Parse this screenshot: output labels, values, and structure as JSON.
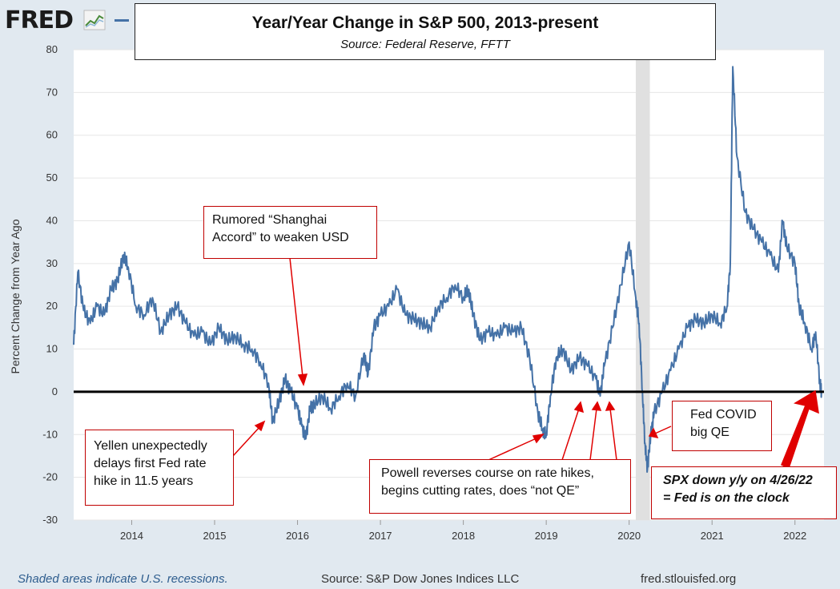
{
  "header": {
    "logo_text": "FRED",
    "logo_icon": "line-graph-icon",
    "legend_color": "#4572a7"
  },
  "title": "Year/Year Change in S&P 500, 2013-present",
  "subtitle": "Source: Federal Reserve, FFTT",
  "footer": {
    "recession_note": "Shaded areas indicate U.S. recessions.",
    "source": "Source: S&P Dow Jones Indices LLC",
    "site": "fred.stlouisfed.org"
  },
  "annotations": {
    "shanghai": [
      "Rumored “Shanghai",
      "Accord” to weaken USD"
    ],
    "yellen": [
      "Yellen unexpectedly",
      "delays first Fed rate",
      "hike in 11.5 years"
    ],
    "powell": [
      "Powell reverses course on rate hikes,",
      "begins cutting rates, does “not QE”"
    ],
    "covid": [
      "Fed COVID",
      "big QE"
    ],
    "spx": [
      "SPX down y/y on 4/26/22",
      "= Fed is on the clock"
    ]
  },
  "colors": {
    "series": "#4572a7",
    "recession": "#e0e0e0",
    "annotation": "#e00000",
    "zero_line": "#000000"
  },
  "chart_data": {
    "type": "line",
    "title": "Year/Year Change in S&P 500, 2013-present",
    "ylabel": "Percent Change from Year Ago",
    "xlabel": "",
    "ylim": [
      -30,
      80
    ],
    "yticks": [
      80,
      70,
      60,
      50,
      40,
      30,
      20,
      10,
      0,
      -10,
      -20,
      -30
    ],
    "xlim": [
      2013.3,
      2022.35
    ],
    "xticks": [
      "2014",
      "2015",
      "2016",
      "2017",
      "2018",
      "2019",
      "2020",
      "2021",
      "2022"
    ],
    "recessions": [
      [
        2020.08,
        2020.25
      ]
    ],
    "reference_line": 0,
    "series": [
      {
        "x": [
          2013.3,
          2013.35,
          2013.42,
          2013.5,
          2013.58,
          2013.67,
          2013.75,
          2013.83,
          2013.9,
          2013.96,
          2014.05,
          2014.15,
          2014.25,
          2014.35,
          2014.45,
          2014.55,
          2014.65,
          2014.75,
          2014.85,
          2014.95,
          2015.05,
          2015.15,
          2015.25,
          2015.35,
          2015.45,
          2015.55,
          2015.65,
          2015.7,
          2015.78,
          2015.85,
          2015.92,
          2016.0,
          2016.05,
          2016.1,
          2016.15,
          2016.2,
          2016.3,
          2016.4,
          2016.5,
          2016.6,
          2016.7,
          2016.8,
          2016.85,
          2016.92,
          2017.0,
          2017.1,
          2017.2,
          2017.3,
          2017.4,
          2017.5,
          2017.6,
          2017.7,
          2017.8,
          2017.9,
          2018.0,
          2018.06,
          2018.12,
          2018.2,
          2018.3,
          2018.4,
          2018.5,
          2018.6,
          2018.7,
          2018.8,
          2018.9,
          2018.96,
          2019.0,
          2019.05,
          2019.12,
          2019.2,
          2019.3,
          2019.4,
          2019.5,
          2019.6,
          2019.65,
          2019.7,
          2019.8,
          2019.9,
          2020.0,
          2020.08,
          2020.12,
          2020.16,
          2020.19,
          2020.22,
          2020.26,
          2020.3,
          2020.4,
          2020.5,
          2020.6,
          2020.7,
          2020.8,
          2020.9,
          2021.0,
          2021.1,
          2021.18,
          2021.22,
          2021.25,
          2021.3,
          2021.4,
          2021.5,
          2021.6,
          2021.7,
          2021.8,
          2021.85,
          2021.9,
          2022.0,
          2022.05,
          2022.12,
          2022.2,
          2022.25,
          2022.3,
          2022.32
        ],
        "values": [
          11,
          28,
          19,
          16,
          20,
          18,
          24,
          26,
          32,
          29,
          20,
          18,
          22,
          14,
          18,
          20,
          16,
          13,
          14,
          11,
          15,
          12,
          13,
          11,
          10,
          7,
          2,
          -7,
          -2,
          3,
          0,
          -4,
          -8,
          -11,
          -4,
          -3,
          -1,
          -4,
          -1,
          2,
          -1,
          9,
          4,
          15,
          18,
          20,
          24,
          18,
          17,
          16,
          15,
          20,
          22,
          25,
          22,
          24,
          18,
          12,
          14,
          13,
          15,
          14,
          15,
          8,
          -5,
          -9,
          -10,
          -1,
          8,
          10,
          5,
          8,
          6,
          3,
          -1,
          6,
          15,
          25,
          35,
          22,
          16,
          0,
          -12,
          -18,
          -10,
          -5,
          0,
          5,
          10,
          15,
          17,
          16,
          18,
          16,
          20,
          30,
          76,
          55,
          42,
          38,
          35,
          32,
          28,
          40,
          34,
          30,
          20,
          16,
          10,
          14,
          2,
          0
        ]
      }
    ]
  }
}
